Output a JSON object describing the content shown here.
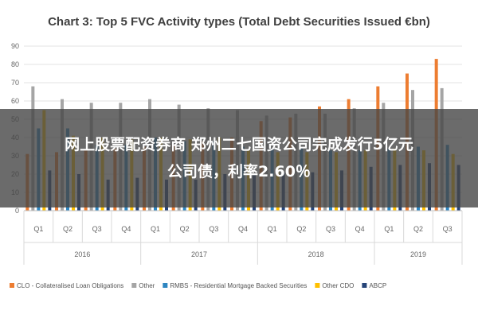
{
  "overlay": {
    "line1": "网上股票配资券商 郑州二七国资公司完成发行5亿元",
    "line2": "公司债，利率2.60％"
  },
  "chart_data": {
    "type": "bar",
    "title": "Chart 3: Top 5 FVC Activity types (Total Debt Securities Issued €bn)",
    "ylim": [
      0,
      90
    ],
    "yticks": [
      0,
      10,
      20,
      30,
      40,
      50,
      60,
      70,
      80,
      90
    ],
    "grid": true,
    "legend_position": "bottom",
    "categories": [
      "Q1",
      "Q2",
      "Q3",
      "Q4",
      "Q1",
      "Q2",
      "Q3",
      "Q4",
      "Q1",
      "Q2",
      "Q3",
      "Q4",
      "Q1",
      "Q2",
      "Q3"
    ],
    "groups": [
      {
        "label": "2016",
        "span": 4
      },
      {
        "label": "2017",
        "span": 4
      },
      {
        "label": "2018",
        "span": 4
      },
      {
        "label": "2019",
        "span": 3
      }
    ],
    "series": [
      {
        "name": "CLO - Collateralised Loan Obligations",
        "color": "#ed7d31",
        "values": [
          31,
          32,
          33,
          34,
          35,
          36,
          38,
          40,
          49,
          51,
          57,
          61,
          68,
          75,
          83
        ]
      },
      {
        "name": "Other",
        "color": "#a5a5a5",
        "values": [
          68,
          61,
          59,
          59,
          61,
          58,
          56,
          55,
          52,
          53,
          53,
          56,
          59,
          66,
          67
        ]
      },
      {
        "name": "RMBS - Residential Mortgage Backed Securities",
        "color": "#2e86c1",
        "values": [
          45,
          45,
          36,
          36,
          40,
          38,
          38,
          35,
          34,
          34,
          33,
          33,
          34,
          35,
          36
        ]
      },
      {
        "name": "Other CDO",
        "color": "#ffc000",
        "values": [
          55,
          41,
          40,
          39,
          40,
          39,
          40,
          33,
          32,
          32,
          32,
          33,
          34,
          33,
          31
        ]
      },
      {
        "name": "ABCP",
        "color": "#264478",
        "values": [
          22,
          20,
          17,
          18,
          17,
          17,
          20,
          20,
          21,
          21,
          22,
          24,
          25,
          26,
          25
        ]
      }
    ]
  }
}
